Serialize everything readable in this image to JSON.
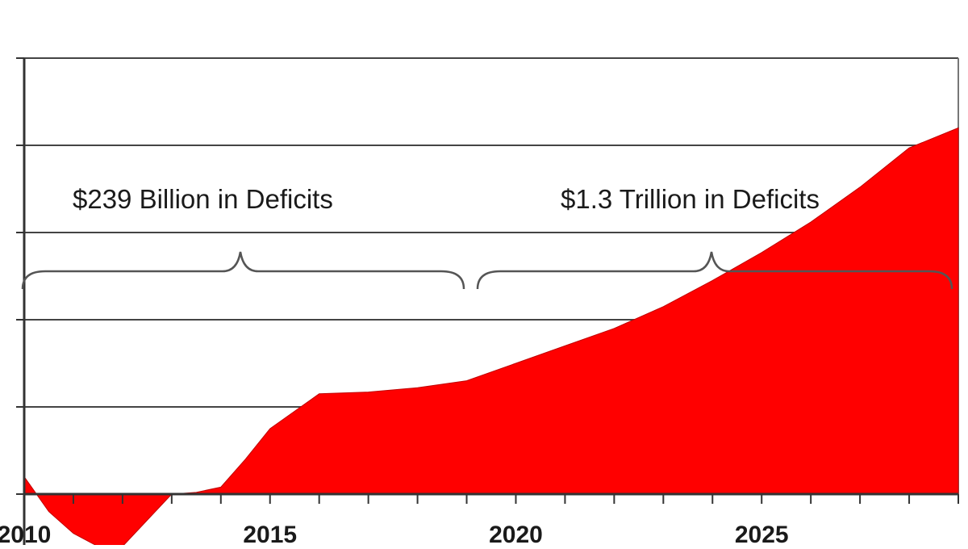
{
  "chart_data": {
    "type": "area",
    "title": "",
    "xlabel": "",
    "ylabel": "",
    "xlim": [
      2010,
      2029
    ],
    "ylim": [
      -1,
      5
    ],
    "grid": true,
    "legend": "none",
    "x_tick_labels": [
      "2010",
      "2015",
      "2020",
      "2025"
    ],
    "x_ticks": [
      2010,
      2015,
      2020,
      2025
    ],
    "series": [
      {
        "fill_color": "#ff0000",
        "x": [
          2010,
          2010.5,
          2011,
          2011.5,
          2012,
          2012.5,
          2013,
          2013.5,
          2014,
          2014.5,
          2015,
          2015.5,
          2016,
          2017,
          2018,
          2019,
          2020,
          2021,
          2022,
          2023,
          2024,
          2025,
          2026,
          2027,
          2028,
          2029
        ],
        "values": [
          0.2,
          -0.2,
          -0.45,
          -0.6,
          -0.6,
          -0.3,
          0.0,
          0.02,
          0.08,
          0.4,
          0.75,
          0.95,
          1.15,
          1.17,
          1.22,
          1.3,
          1.5,
          1.7,
          1.9,
          2.15,
          2.45,
          2.77,
          3.12,
          3.52,
          3.97,
          4.2
        ]
      }
    ],
    "annotations": [
      {
        "text": "$239 Billion in Deficits",
        "x_range": [
          2010,
          2019
        ]
      },
      {
        "text": "$1.3 Trillion in Deficits",
        "x_range": [
          2019,
          2029
        ]
      }
    ]
  }
}
